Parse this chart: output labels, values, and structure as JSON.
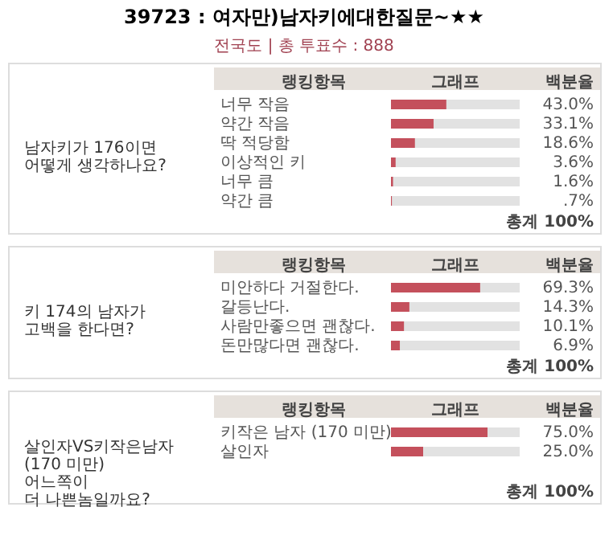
{
  "chart_data": [
    {
      "type": "bar",
      "orientation": "horizontal",
      "title": "39723 : 여자만)남자키에대한질문~★★",
      "subtitle": "전국도 | 총 투표수 : 888",
      "ylabel": "남자키가 176이면\n어떻게 생각하나요?",
      "annotations": [
        "랭킹항목",
        "그래프",
        "백분율",
        "총계 100%"
      ],
      "categories": [
        "너무 작음",
        "약간 작음",
        "딱 적당함",
        "이상적인 키",
        "너무 큼",
        "약간 큼"
      ],
      "values": [
        43.0,
        33.1,
        18.6,
        3.6,
        1.6,
        0.7
      ],
      "value_labels": [
        "43.0%",
        "33.1%",
        "18.6%",
        "3.6%",
        "1.6%",
        ".7%"
      ],
      "color": "#c4505c",
      "xlim": [
        0,
        100
      ],
      "tick_labels": false
    },
    {
      "type": "bar",
      "orientation": "horizontal",
      "ylabel": "키 174의 남자가\n고백을 한다면?",
      "annotations": [
        "랭킹항목",
        "그래프",
        "백분율",
        "총계 100%"
      ],
      "categories": [
        "미안하다 거절한다.",
        "갈등난다.",
        "사람만좋으면 괜찮다.",
        "돈만많다면 괜찮다."
      ],
      "values": [
        69.3,
        14.3,
        10.1,
        6.9
      ],
      "value_labels": [
        "69.3%",
        "14.3%",
        "10.1%",
        "6.9%"
      ],
      "color": "#c4505c",
      "xlim": [
        0,
        100
      ],
      "tick_labels": false
    },
    {
      "type": "bar",
      "orientation": "horizontal",
      "ylabel": "살인자VS키작은남자\n(170 미만)\n어느쪽이\n더 나쁜놈일까요?",
      "annotations": [
        "랭킹항목",
        "그래프",
        "백분율",
        "총계 100%"
      ],
      "categories": [
        "키작은 남자 (170 미만)",
        "살인자"
      ],
      "values": [
        75.0,
        25.0
      ],
      "value_labels": [
        "75.0%",
        "25.0%"
      ],
      "color": "#c4505c",
      "xlim": [
        0,
        100
      ],
      "tick_labels": false
    }
  ]
}
